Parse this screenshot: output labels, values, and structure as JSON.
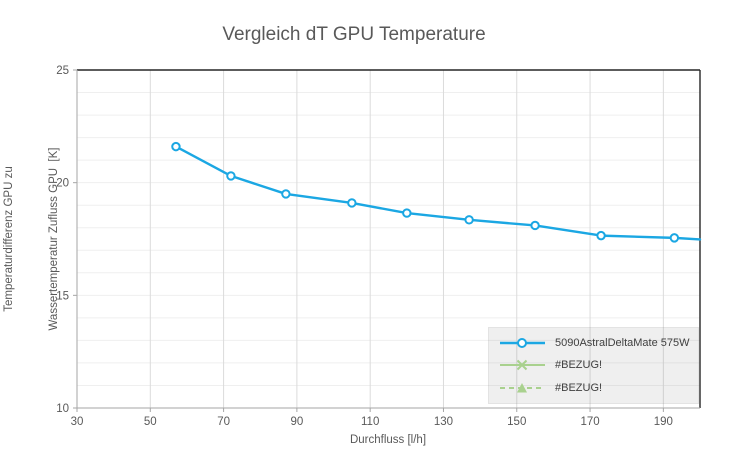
{
  "title": "Vergleich dT GPU Temperature",
  "x_axis": {
    "title": "Durchfluss [l/h]"
  },
  "y_axis": {
    "title_line1": "Temperaturdifferenz GPU zu",
    "title_line2": "Wassertemperatur Zufluss GPU  [K]"
  },
  "legend": {
    "entries": [
      {
        "label": "5090AstralDeltaMate 575W"
      },
      {
        "label": "#BEZUG!"
      },
      {
        "label": "#BEZUG!"
      }
    ]
  },
  "chart_data": {
    "type": "line",
    "title": "Vergleich dT GPU Temperature",
    "xlabel": "Durchfluss [l/h]",
    "ylabel": "Temperaturdifferenz GPU zu Wassertemperatur Zufluss GPU [K]",
    "xlim": [
      30,
      200
    ],
    "ylim": [
      10,
      25
    ],
    "x_ticks": [
      30,
      50,
      70,
      90,
      110,
      130,
      150,
      170,
      190
    ],
    "y_ticks": [
      10,
      15,
      20,
      25
    ],
    "y_gridline_unit": 1,
    "grid": true,
    "legend_position": "inside-bottom-right",
    "series": [
      {
        "name": "5090AstralDeltaMate 575W",
        "color": "#1BA7E3",
        "marker": "open-circle",
        "style": "solid",
        "x": [
          57,
          72,
          87,
          105,
          120,
          137,
          155,
          173,
          193
        ],
        "y": [
          21.6,
          20.3,
          19.5,
          19.1,
          18.65,
          18.35,
          18.1,
          17.65,
          17.55
        ],
        "line_extends_to": {
          "x": 200,
          "y": 17.48
        }
      },
      {
        "name": "#BEZUG!",
        "color": "#A9D18E",
        "marker": "x",
        "style": "solid",
        "x": [],
        "y": []
      },
      {
        "name": "#BEZUG!",
        "color": "#A9D18E",
        "marker": "triangle",
        "style": "dashed",
        "x": [],
        "y": []
      }
    ],
    "colors": {
      "series_blue": "#1BA7E3",
      "bezug_green": "#A9D18E",
      "grid_horizontal": "#EFEFEF",
      "grid_vertical": "#DBDBDB",
      "axis_line": "#A6A6A6",
      "plot_border": "#262626",
      "text": "#595959"
    }
  }
}
